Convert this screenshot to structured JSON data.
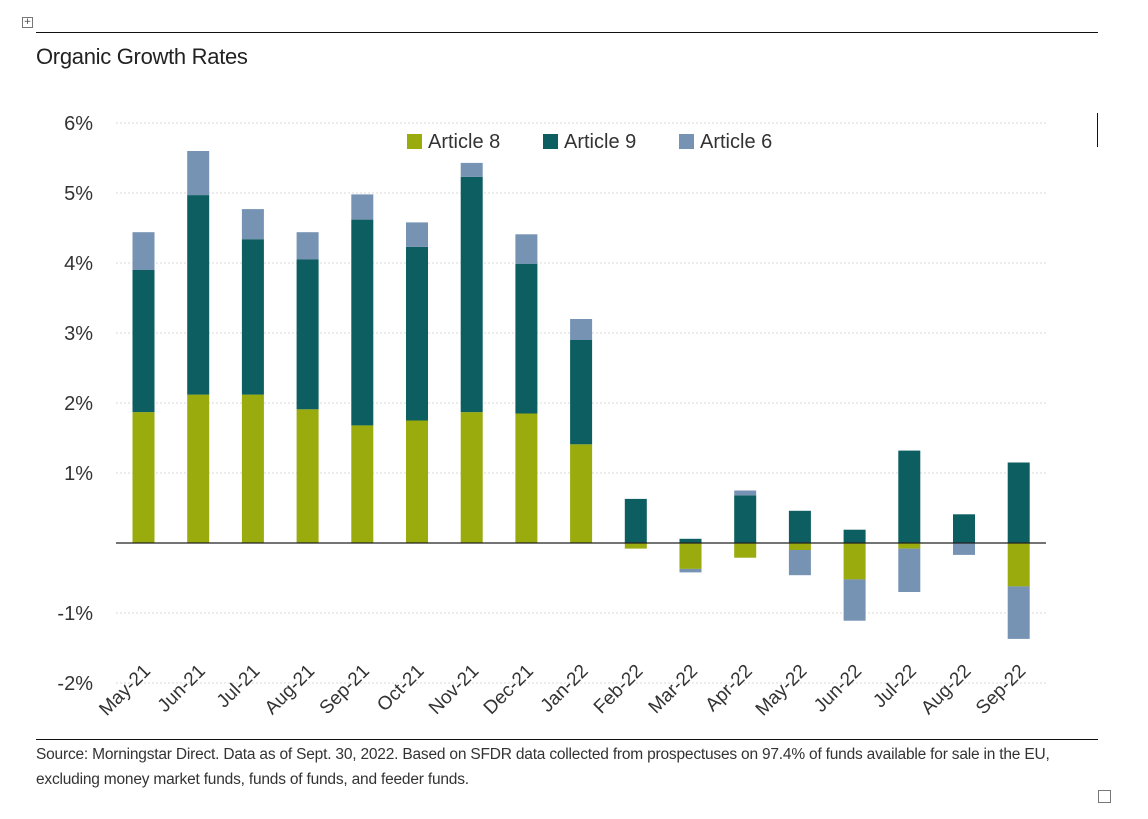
{
  "window": {
    "move_handle_icon": "move-cross-icon",
    "resize_handle_icon": "resize-square-icon"
  },
  "source_note": "Source: Morningstar Direct. Data as of Sept. 30, 2022. Based on SFDR data collected from prospectuses on 97.4% of funds available for sale in the EU, excluding money market funds, funds of funds, and feeder funds.",
  "chart_data": {
    "type": "bar",
    "stacked": true,
    "title": "Organic Growth Rates",
    "xlabel": "",
    "ylabel": "",
    "ylim": [
      -2,
      6
    ],
    "yticks": [
      6,
      5,
      4,
      3,
      2,
      1,
      -1,
      -2
    ],
    "ytick_labels": [
      "6%",
      "5%",
      "4%",
      "3%",
      "2%",
      "1%",
      "-1%",
      "-2%"
    ],
    "grid": true,
    "legend_position": "top-center",
    "categories": [
      "May-21",
      "Jun-21",
      "Jul-21",
      "Aug-21",
      "Sep-21",
      "Oct-21",
      "Nov-21",
      "Dec-21",
      "Jan-22",
      "Feb-22",
      "Mar-22",
      "Apr-22",
      "May-22",
      "Jun-22",
      "Jul-22",
      "Aug-22",
      "Sep-22"
    ],
    "series": [
      {
        "name": "Article 8",
        "color": "#9aab0e",
        "values": [
          1.87,
          2.12,
          2.12,
          1.91,
          1.68,
          1.75,
          1.87,
          1.85,
          1.41,
          -0.08,
          -0.37,
          -0.21,
          -0.1,
          -0.52,
          -0.08,
          0.0,
          -0.62
        ]
      },
      {
        "name": "Article 9",
        "color": "#0c5e60",
        "values": [
          2.03,
          2.85,
          2.22,
          2.14,
          2.94,
          2.48,
          3.36,
          2.14,
          1.49,
          0.63,
          0.06,
          0.68,
          0.46,
          0.19,
          1.32,
          0.41,
          1.15
        ]
      },
      {
        "name": "Article 6",
        "color": "#7693b4",
        "values": [
          0.54,
          0.63,
          0.43,
          0.39,
          0.36,
          0.35,
          0.2,
          0.42,
          0.3,
          0.0,
          -0.05,
          0.07,
          -0.36,
          -0.59,
          -0.62,
          -0.17,
          -0.75
        ]
      }
    ]
  }
}
